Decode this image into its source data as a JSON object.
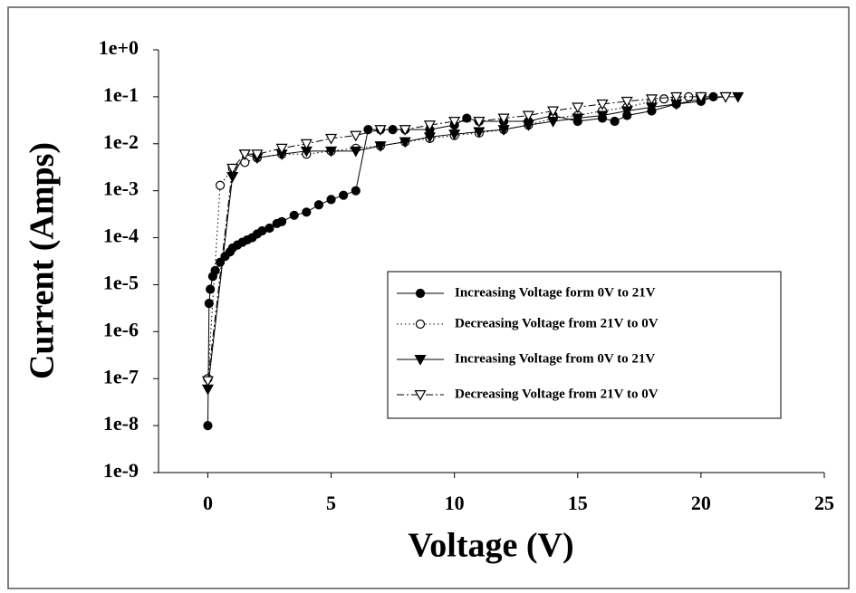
{
  "chart_data": {
    "type": "line",
    "x_label": "Voltage (V)",
    "y_label": "Current (Amps)",
    "xlim": [
      -2,
      25
    ],
    "xticks": [
      0,
      5,
      10,
      15,
      20,
      25
    ],
    "ylim": [
      1e-09,
      1
    ],
    "log_y": true,
    "yticks": [
      {
        "value": 1,
        "label": "1e+0"
      },
      {
        "value": 0.1,
        "label": "1e-1"
      },
      {
        "value": 0.01,
        "label": "1e-2"
      },
      {
        "value": 0.001,
        "label": "1e-3"
      },
      {
        "value": 0.0001,
        "label": "1e-4"
      },
      {
        "value": 1e-05,
        "label": "1e-5"
      },
      {
        "value": 1e-06,
        "label": "1e-6"
      },
      {
        "value": 1e-07,
        "label": "1e-7"
      },
      {
        "value": 1e-08,
        "label": "1e-8"
      },
      {
        "value": 1e-09,
        "label": "1e-9"
      }
    ],
    "grid": false,
    "legend": "right",
    "series": [
      {
        "name": "Increasing Voltage form 0V to 21V",
        "color": "#000000",
        "marker": "filled-circle",
        "line_style": "solid",
        "x": [
          0,
          0.05,
          0.1,
          0.2,
          0.3,
          0.5,
          0.7,
          0.9,
          1.0,
          1.2,
          1.4,
          1.6,
          1.8,
          2.0,
          2.2,
          2.5,
          2.8,
          3.0,
          3.5,
          4.0,
          4.5,
          5.0,
          5.5,
          6.0,
          6.5,
          7.0,
          7.5,
          8.0,
          9.0,
          10.0,
          10.5,
          11.0,
          12.0,
          13.0,
          14.0,
          15.0,
          16.0,
          16.5,
          17.0,
          18.0,
          19.0,
          20.0,
          20.5
        ],
        "values": [
          1e-08,
          4e-06,
          8e-06,
          1.5e-05,
          2e-05,
          3e-05,
          4e-05,
          5e-05,
          6e-05,
          7e-05,
          8e-05,
          9e-05,
          0.0001,
          0.00012,
          0.00014,
          0.00016,
          0.0002,
          0.00022,
          0.0003,
          0.00035,
          0.0005,
          0.00065,
          0.0008,
          0.001,
          0.02,
          0.02,
          0.02,
          0.02,
          0.02,
          0.025,
          0.035,
          0.03,
          0.03,
          0.03,
          0.04,
          0.03,
          0.035,
          0.03,
          0.04,
          0.05,
          0.07,
          0.08,
          0.1
        ]
      },
      {
        "name": "Decreasing Voltage from 21V to 0V",
        "color": "#000000",
        "marker": "open-circle",
        "line_style": "dotted",
        "x": [
          20,
          19.5,
          19,
          18.5,
          18,
          17,
          16,
          15,
          14,
          13,
          12,
          11,
          10,
          9,
          8,
          7,
          6,
          5,
          4,
          3,
          2,
          1.5,
          1,
          0.5,
          0
        ],
        "values": [
          0.1,
          0.1,
          0.09,
          0.09,
          0.08,
          0.06,
          0.05,
          0.04,
          0.035,
          0.025,
          0.02,
          0.017,
          0.015,
          0.013,
          0.011,
          0.009,
          0.008,
          0.007,
          0.006,
          0.006,
          0.005,
          0.004,
          0.003,
          0.0013,
          1e-07
        ]
      },
      {
        "name": "Increasing Voltage from 0V to 21V",
        "color": "#000000",
        "marker": "filled-triangle",
        "line_style": "solid",
        "x": [
          0,
          1,
          1.5,
          2,
          3,
          4,
          5,
          6,
          7,
          8,
          9,
          10,
          11,
          12,
          13,
          14,
          15,
          16,
          17,
          18,
          19,
          20,
          21,
          21.5
        ],
        "values": [
          6e-08,
          0.002,
          0.006,
          0.005,
          0.006,
          0.007,
          0.007,
          0.007,
          0.009,
          0.011,
          0.014,
          0.016,
          0.018,
          0.02,
          0.025,
          0.03,
          0.035,
          0.04,
          0.05,
          0.06,
          0.07,
          0.09,
          0.1,
          0.1
        ]
      },
      {
        "name": "Decreasing Voltage from 21V to 0V",
        "color": "#000000",
        "marker": "open-triangle",
        "line_style": "dash-dot",
        "x": [
          21,
          20,
          19,
          18,
          17,
          16,
          15,
          14,
          13,
          12,
          11,
          10,
          9,
          8,
          7,
          6,
          5,
          4,
          3,
          2,
          1.5,
          1,
          0
        ],
        "values": [
          0.1,
          0.1,
          0.1,
          0.09,
          0.08,
          0.07,
          0.06,
          0.05,
          0.04,
          0.035,
          0.03,
          0.03,
          0.025,
          0.02,
          0.02,
          0.015,
          0.013,
          0.01,
          0.008,
          0.006,
          0.006,
          0.003,
          9e-08
        ]
      }
    ]
  }
}
